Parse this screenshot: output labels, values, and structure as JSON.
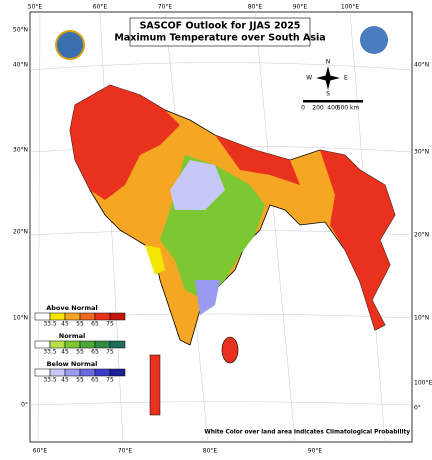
{
  "title": [
    "SASCOF Outlook for JJAS 2025",
    "Maximum Temperature over South Asia"
  ],
  "top_labels": [
    "50°E",
    "60°E",
    "70°E",
    "80°E",
    "90°E",
    "100°E"
  ],
  "bottom_labels": [
    "60°E",
    "70°E",
    "80°E",
    "90°E"
  ],
  "left_labels": [
    "50°N",
    "40°N",
    "30°N",
    "20°N",
    "10°N",
    "0°"
  ],
  "right_labels": [
    "40°N",
    "30°N",
    "20°N",
    "10°N",
    "100°E",
    "0°"
  ],
  "compass": {
    "N": "N",
    "S": "S",
    "E": "E",
    "W": "W"
  },
  "scale": [
    "0",
    "200",
    "400",
    "600 km"
  ],
  "legend": [
    {
      "title": "Above Normal",
      "ticks": [
        33.5,
        45,
        55,
        65,
        75
      ],
      "colors": [
        "#ffffff",
        "#f2e600",
        "#f5a623",
        "#f06a1e",
        "#e8321e",
        "#c4160f"
      ]
    },
    {
      "title": "Normal",
      "ticks": [
        33.5,
        45,
        55,
        65,
        75
      ],
      "colors": [
        "#ffffff",
        "#b8e04a",
        "#7cc832",
        "#4aa83a",
        "#2e8c46",
        "#1f6e5a"
      ]
    },
    {
      "title": "Below Normal",
      "ticks": [
        33.5,
        45,
        55,
        65,
        75
      ],
      "colors": [
        "#ffffff",
        "#c8c8f8",
        "#9a9af0",
        "#6a6ae0",
        "#3c3cc8",
        "#1e1e96"
      ]
    }
  ],
  "footnote": "White Color over land area indicates Climatological Probability"
}
